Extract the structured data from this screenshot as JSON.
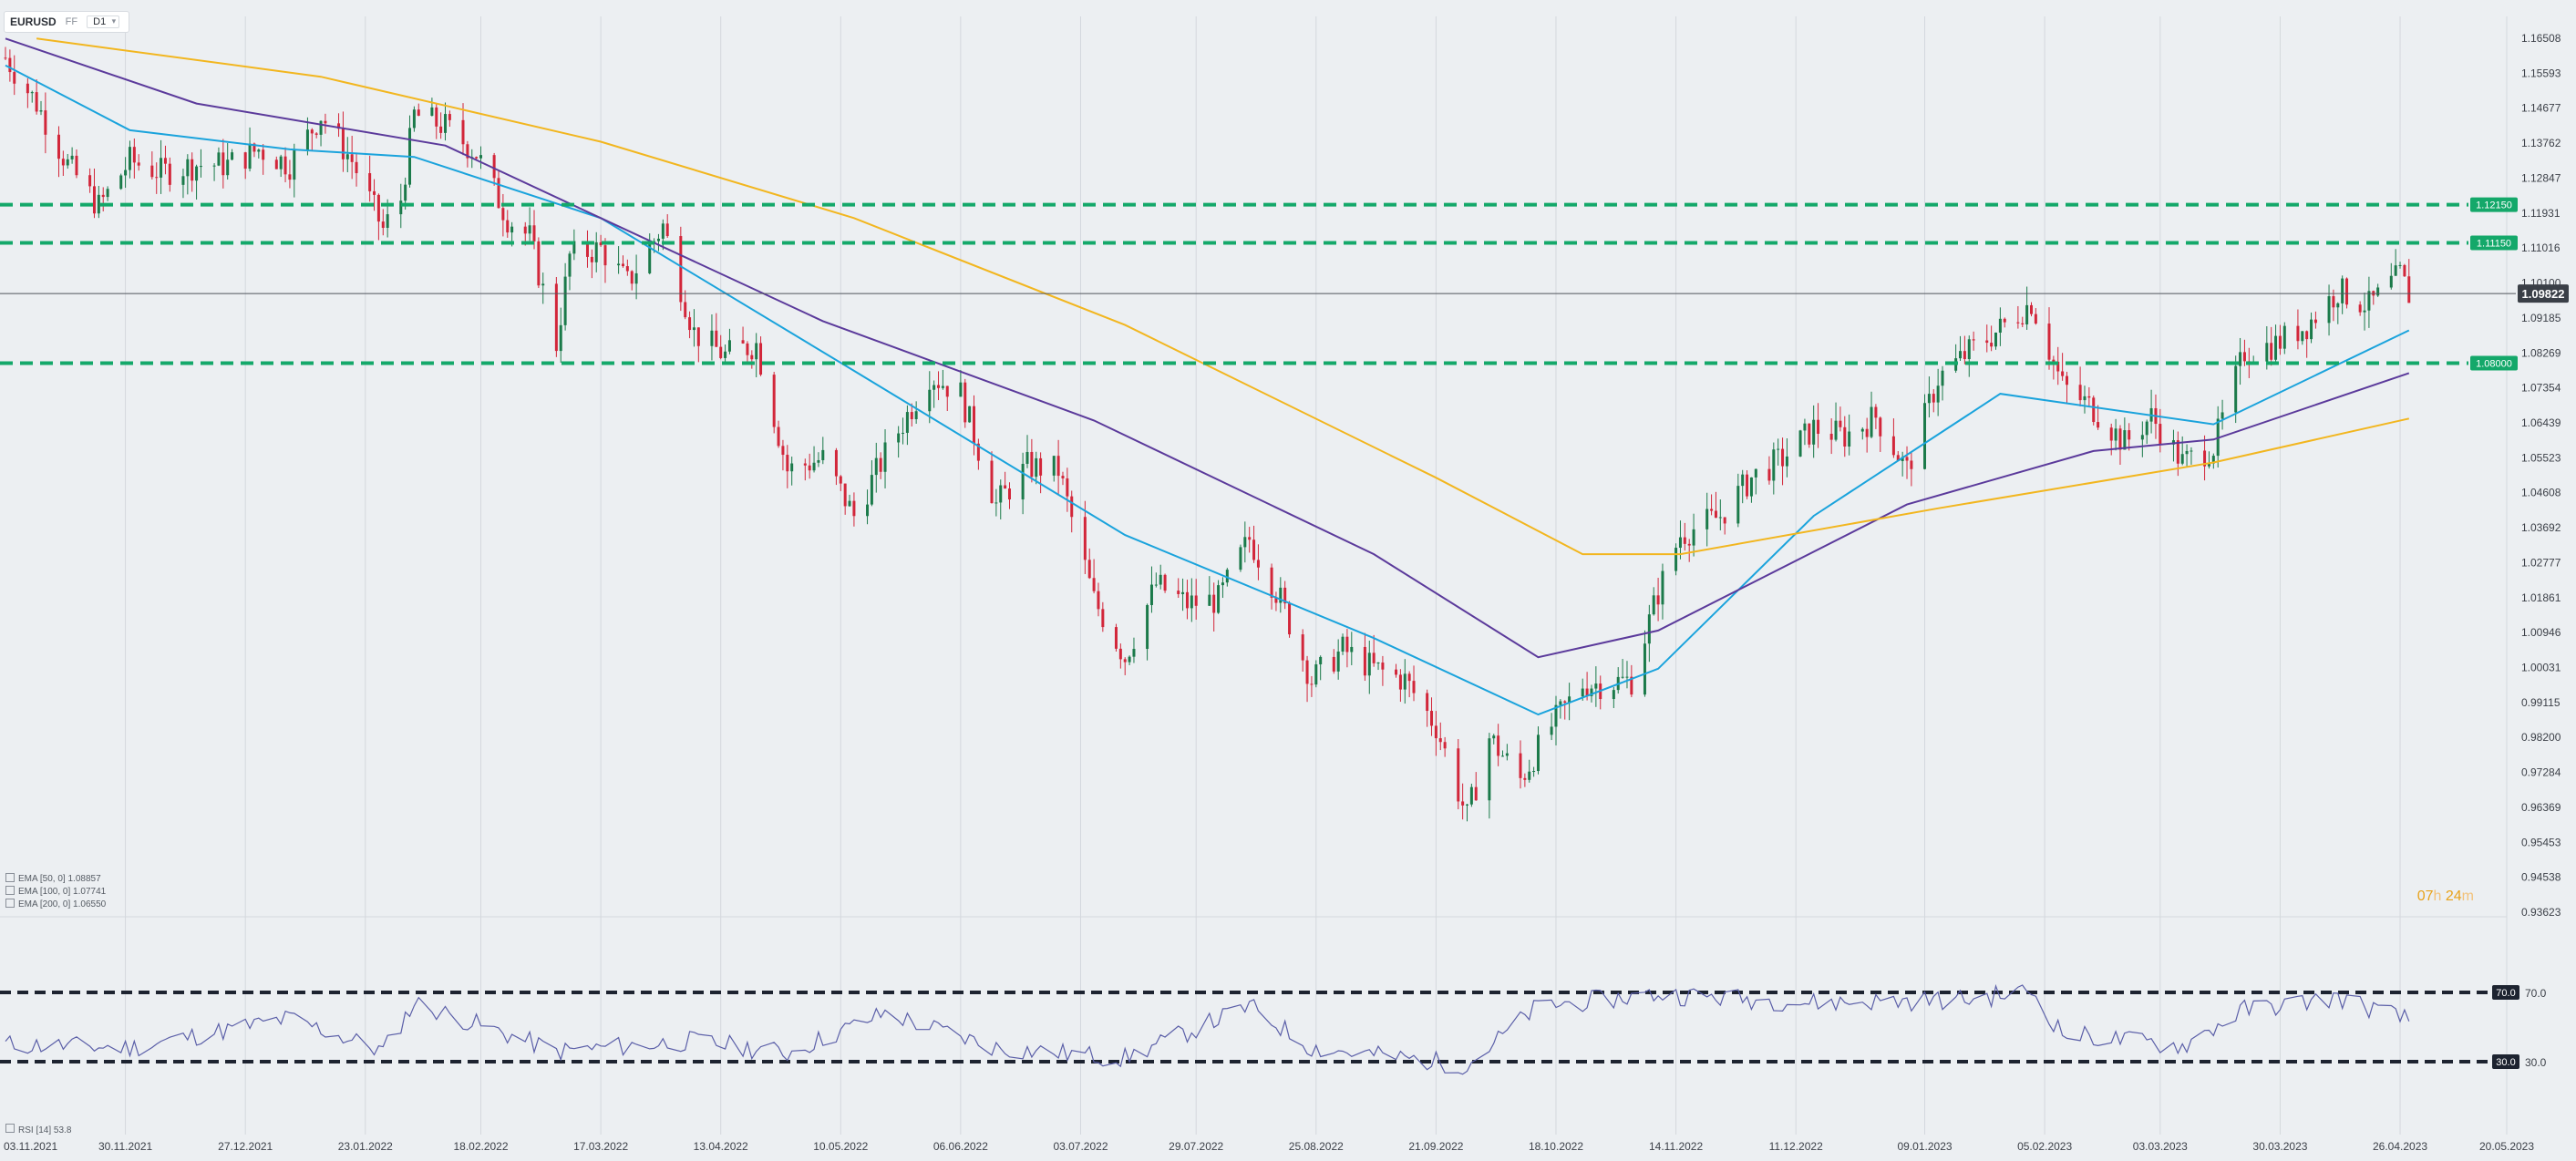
{
  "toolbar": {
    "symbol": "EURUSD",
    "ff_label": "FF",
    "timeframe": "D1"
  },
  "indicators": {
    "ema50": {
      "label": "EMA [50, 0]",
      "value": "1.08857",
      "color": "#1aa3dc"
    },
    "ema100": {
      "label": "EMA [100, 0]",
      "value": "1.07741",
      "color": "#5b3a9b"
    },
    "ema200": {
      "label": "EMA [200, 0]",
      "value": "1.06550",
      "color": "#f2b61f"
    },
    "rsi": {
      "label": "RSI [14]",
      "value": "53.8",
      "color": "#5b5fa8"
    }
  },
  "countdown": {
    "hours": "07",
    "hours_unit": "h",
    "minutes": "24",
    "minutes_unit": "m"
  },
  "colors": {
    "bull": "#1b7a4a",
    "bear": "#d2263a",
    "level": "#14a86a",
    "rsi_level": "#1d2330",
    "price_label": "#3a3f47",
    "background": "#eceff2",
    "grid": "#d4d8dd"
  },
  "chart_data": {
    "type": "candlestick",
    "symbol": "EURUSD",
    "price_axis": {
      "min": 0.93623,
      "max": 1.16508,
      "ticks": [
        "1.16508",
        "1.15593",
        "1.14677",
        "1.13762",
        "1.12847",
        "1.11931",
        "1.11016",
        "1.10100",
        "1.09185",
        "1.08269",
        "1.07354",
        "1.06439",
        "1.05523",
        "1.04608",
        "1.03692",
        "1.02777",
        "1.01861",
        "1.00946",
        "1.00031",
        "0.99115",
        "0.98200",
        "0.97284",
        "0.96369",
        "0.95453",
        "0.94538",
        "0.93623"
      ]
    },
    "date_axis": {
      "start": "03.11.2021",
      "end": "20.05.2023",
      "ticks": [
        "03.11.2021",
        "30.11.2021",
        "27.12.2021",
        "23.01.2022",
        "18.02.2022",
        "17.03.2022",
        "13.04.2022",
        "10.05.2022",
        "06.06.2022",
        "03.07.2022",
        "29.07.2022",
        "25.08.2022",
        "21.09.2022",
        "18.10.2022",
        "14.11.2022",
        "11.12.2022",
        "09.01.2023",
        "05.02.2023",
        "03.03.2023",
        "30.03.2023",
        "26.04.2023",
        "20.05.2023"
      ]
    },
    "current_price": "1.09822",
    "levels": [
      {
        "label": "1.12150",
        "value": 1.1215
      },
      {
        "label": "1.11150",
        "value": 1.1115
      },
      {
        "label": "1.08000",
        "value": 1.08
      }
    ],
    "price_path": [
      [
        "2021-11-03",
        1.16
      ],
      [
        "2021-11-10",
        1.148
      ],
      [
        "2021-11-17",
        1.132
      ],
      [
        "2021-11-24",
        1.121
      ],
      [
        "2021-12-01",
        1.133
      ],
      [
        "2021-12-08",
        1.13
      ],
      [
        "2021-12-16",
        1.132
      ],
      [
        "2021-12-23",
        1.132
      ],
      [
        "2021-12-30",
        1.136
      ],
      [
        "2022-01-06",
        1.132
      ],
      [
        "2022-01-13",
        1.145
      ],
      [
        "2022-01-20",
        1.133
      ],
      [
        "2022-01-27",
        1.115
      ],
      [
        "2022-01-31",
        1.123
      ],
      [
        "2022-02-03",
        1.145
      ],
      [
        "2022-02-10",
        1.142
      ],
      [
        "2022-02-17",
        1.135
      ],
      [
        "2022-02-24",
        1.118
      ],
      [
        "2022-03-01",
        1.113
      ],
      [
        "2022-03-07",
        1.085
      ],
      [
        "2022-03-10",
        1.108
      ],
      [
        "2022-03-17",
        1.11
      ],
      [
        "2022-03-23",
        1.101
      ],
      [
        "2022-03-31",
        1.116
      ],
      [
        "2022-04-07",
        1.088
      ],
      [
        "2022-04-14",
        1.082
      ],
      [
        "2022-04-21",
        1.085
      ],
      [
        "2022-04-28",
        1.052
      ],
      [
        "2022-05-06",
        1.055
      ],
      [
        "2022-05-13",
        1.04
      ],
      [
        "2022-05-20",
        1.056
      ],
      [
        "2022-05-30",
        1.077
      ],
      [
        "2022-06-06",
        1.072
      ],
      [
        "2022-06-14",
        1.043
      ],
      [
        "2022-06-21",
        1.053
      ],
      [
        "2022-06-28",
        1.052
      ],
      [
        "2022-07-06",
        1.018
      ],
      [
        "2022-07-13",
        1.003
      ],
      [
        "2022-07-20",
        1.022
      ],
      [
        "2022-07-27",
        1.017
      ],
      [
        "2022-08-03",
        1.018
      ],
      [
        "2022-08-10",
        1.034
      ],
      [
        "2022-08-17",
        1.018
      ],
      [
        "2022-08-24",
        0.997
      ],
      [
        "2022-08-31",
        1.005
      ],
      [
        "2022-09-07",
        1.0
      ],
      [
        "2022-09-14",
        0.997
      ],
      [
        "2022-09-21",
        0.985
      ],
      [
        "2022-09-28",
        0.961
      ],
      [
        "2022-10-03",
        0.982
      ],
      [
        "2022-10-10",
        0.971
      ],
      [
        "2022-10-17",
        0.985
      ],
      [
        "2022-10-24",
        0.996
      ],
      [
        "2022-10-28",
        0.996
      ],
      [
        "2022-11-04",
        0.997
      ],
      [
        "2022-11-10",
        1.02
      ],
      [
        "2022-11-15",
        1.035
      ],
      [
        "2022-11-24",
        1.04
      ],
      [
        "2022-12-01",
        1.05
      ],
      [
        "2022-12-08",
        1.055
      ],
      [
        "2022-12-15",
        1.063
      ],
      [
        "2022-12-22",
        1.061
      ],
      [
        "2022-12-29",
        1.066
      ],
      [
        "2023-01-05",
        1.052
      ],
      [
        "2023-01-12",
        1.076
      ],
      [
        "2023-01-19",
        1.083
      ],
      [
        "2023-01-26",
        1.089
      ],
      [
        "2023-02-02",
        1.096
      ],
      [
        "2023-02-09",
        1.074
      ],
      [
        "2023-02-16",
        1.068
      ],
      [
        "2023-02-23",
        1.059
      ],
      [
        "2023-03-01",
        1.066
      ],
      [
        "2023-03-08",
        1.054
      ],
      [
        "2023-03-15",
        1.058
      ],
      [
        "2023-03-22",
        1.083
      ],
      [
        "2023-03-29",
        1.085
      ],
      [
        "2023-04-05",
        1.09
      ],
      [
        "2023-04-12",
        1.099
      ],
      [
        "2023-04-19",
        1.095
      ],
      [
        "2023-04-26",
        1.103
      ],
      [
        "2023-04-28",
        1.098
      ]
    ],
    "ema_series": [
      {
        "name": "EMA [50, 0]",
        "points": [
          [
            "2021-11-03",
            1.158
          ],
          [
            "2021-12-01",
            1.141
          ],
          [
            "2022-01-06",
            1.136
          ],
          [
            "2022-02-03",
            1.134
          ],
          [
            "2022-03-17",
            1.118
          ],
          [
            "2022-05-13",
            1.078
          ],
          [
            "2022-07-13",
            1.035
          ],
          [
            "2022-09-07",
            1.008
          ],
          [
            "2022-10-14",
            0.988
          ],
          [
            "2022-11-10",
            1.0
          ],
          [
            "2022-12-15",
            1.04
          ],
          [
            "2023-01-26",
            1.072
          ],
          [
            "2023-03-15",
            1.064
          ],
          [
            "2023-04-28",
            1.0886
          ]
        ]
      },
      {
        "name": "EMA [100, 0]",
        "points": [
          [
            "2021-11-03",
            1.165
          ],
          [
            "2021-12-16",
            1.148
          ],
          [
            "2022-02-10",
            1.137
          ],
          [
            "2022-03-17",
            1.118
          ],
          [
            "2022-05-06",
            1.091
          ],
          [
            "2022-07-06",
            1.065
          ],
          [
            "2022-09-07",
            1.03
          ],
          [
            "2022-10-14",
            1.003
          ],
          [
            "2022-11-10",
            1.01
          ],
          [
            "2023-01-05",
            1.043
          ],
          [
            "2023-02-16",
            1.057
          ],
          [
            "2023-03-15",
            1.06
          ],
          [
            "2023-04-28",
            1.0774
          ]
        ]
      },
      {
        "name": "EMA [200, 0]",
        "points": [
          [
            "2021-11-10",
            1.165
          ],
          [
            "2022-01-13",
            1.155
          ],
          [
            "2022-03-17",
            1.138
          ],
          [
            "2022-05-13",
            1.118
          ],
          [
            "2022-07-13",
            1.09
          ],
          [
            "2022-09-21",
            1.05
          ],
          [
            "2022-10-24",
            1.03
          ],
          [
            "2022-11-15",
            1.03
          ],
          [
            "2023-01-12",
            1.042
          ],
          [
            "2023-03-15",
            1.054
          ],
          [
            "2023-04-28",
            1.0655
          ]
        ]
      }
    ],
    "rsi": {
      "name": "RSI [14]",
      "value": "53.8",
      "levels": [
        "70.0",
        "30.0"
      ],
      "range": [
        20,
        80
      ],
      "points": [
        [
          "2021-11-03",
          40
        ],
        [
          "2021-12-01",
          38
        ],
        [
          "2022-01-06",
          55
        ],
        [
          "2022-01-27",
          36
        ],
        [
          "2022-02-03",
          64
        ],
        [
          "2022-03-07",
          36
        ],
        [
          "2022-04-07",
          42
        ],
        [
          "2022-04-28",
          35
        ],
        [
          "2022-05-20",
          58
        ],
        [
          "2022-06-14",
          38
        ],
        [
          "2022-07-13",
          32
        ],
        [
          "2022-08-10",
          62
        ],
        [
          "2022-08-24",
          38
        ],
        [
          "2022-09-28",
          28
        ],
        [
          "2022-10-14",
          62
        ],
        [
          "2022-11-10",
          69
        ],
        [
          "2022-12-15",
          64
        ],
        [
          "2023-01-19",
          66
        ],
        [
          "2023-02-02",
          71
        ],
        [
          "2023-02-09",
          46
        ],
        [
          "2023-03-08",
          39
        ],
        [
          "2023-03-22",
          60
        ],
        [
          "2023-04-12",
          67
        ],
        [
          "2023-04-28",
          53.8
        ]
      ]
    }
  }
}
